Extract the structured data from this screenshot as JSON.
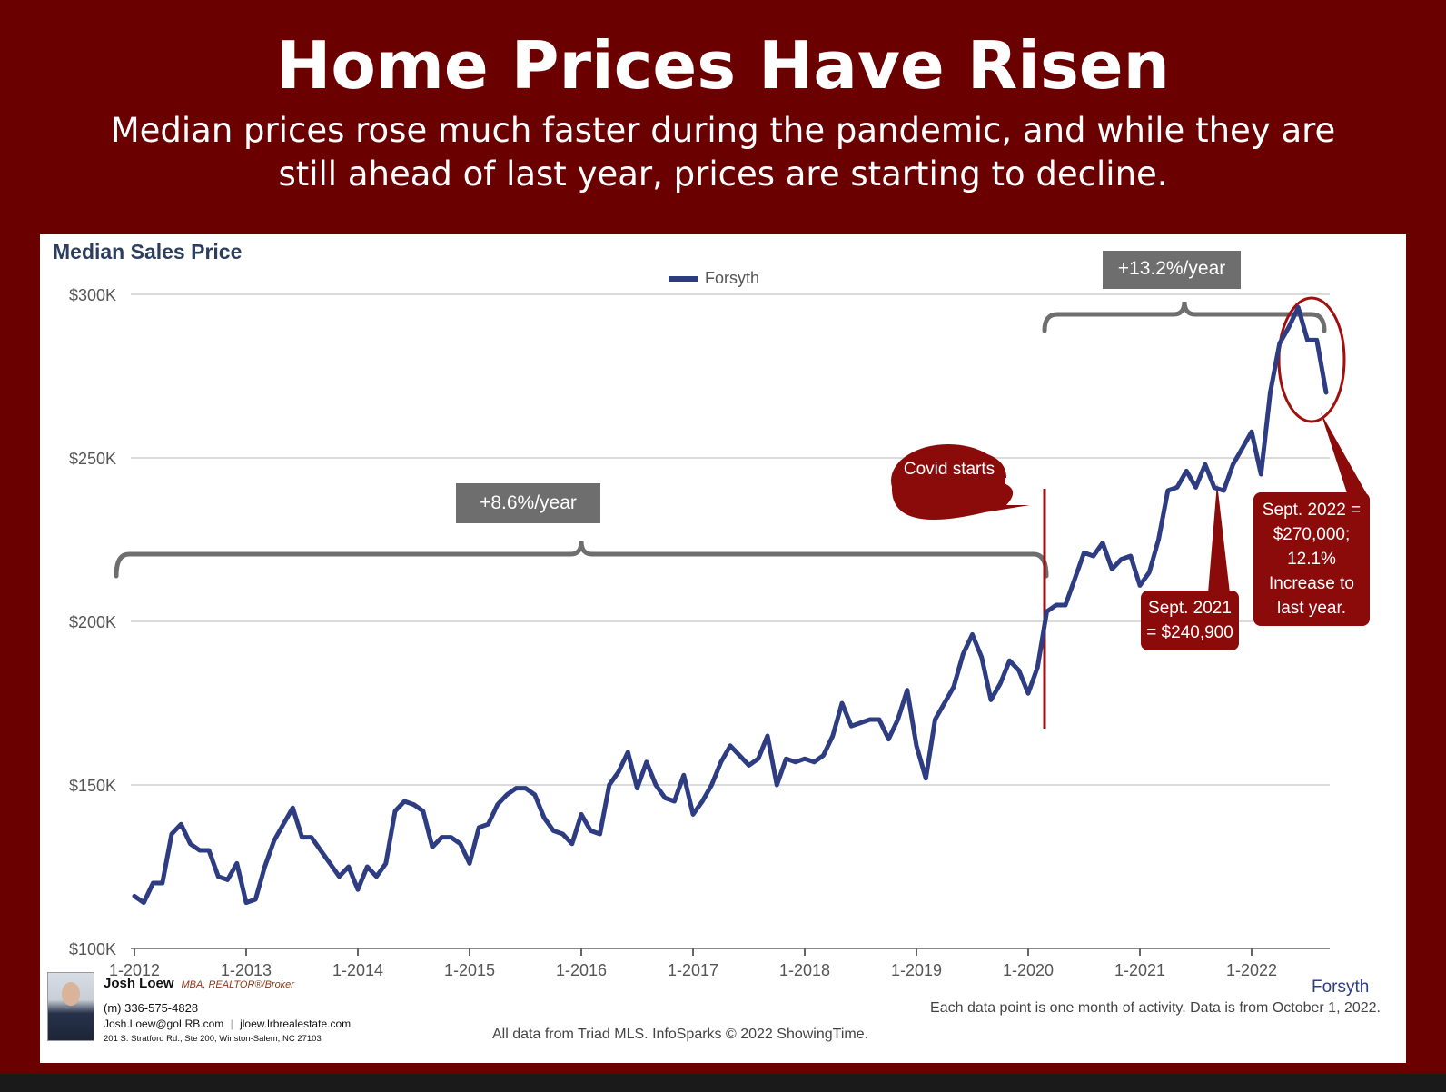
{
  "header": {
    "title": "Home Prices Have Risen",
    "subtitle": "Median prices rose much faster during the pandemic, and while they are still ahead of last year, prices are starting to decline."
  },
  "chart_data": {
    "type": "line",
    "title": "Median Sales Price",
    "legend": "Forsyth",
    "legend_position": "top-center",
    "grid": true,
    "ylim": [
      100000,
      300000
    ],
    "y_ticks": [
      "$100K",
      "$150K",
      "$200K",
      "$250K",
      "$300K"
    ],
    "y_tick_values": [
      100000,
      150000,
      200000,
      250000,
      300000
    ],
    "x_ticks": [
      "1-2012",
      "1-2013",
      "1-2014",
      "1-2015",
      "1-2016",
      "1-2017",
      "1-2018",
      "1-2019",
      "1-2020",
      "1-2021",
      "1-2022"
    ],
    "x_start": "2012-01",
    "series": [
      {
        "name": "Forsyth",
        "color": "#2e3c82",
        "values": [
          116000,
          114000,
          120000,
          120000,
          135000,
          138000,
          132000,
          130000,
          130000,
          122000,
          121000,
          126000,
          114000,
          115000,
          125000,
          133000,
          138000,
          143000,
          134000,
          134000,
          130000,
          126000,
          122000,
          125000,
          118000,
          125000,
          122000,
          126000,
          142000,
          145000,
          144000,
          142000,
          131000,
          134000,
          134000,
          132000,
          126000,
          137000,
          138000,
          144000,
          147000,
          149000,
          149000,
          147000,
          140000,
          136000,
          135000,
          132000,
          141000,
          136000,
          135000,
          150000,
          154000,
          160000,
          149000,
          157000,
          150000,
          146000,
          145000,
          153000,
          141000,
          145000,
          150000,
          157000,
          162000,
          159000,
          156000,
          158000,
          165000,
          150000,
          158000,
          157000,
          158000,
          157000,
          159000,
          165000,
          175000,
          168000,
          169000,
          170000,
          170000,
          164000,
          170000,
          179000,
          162000,
          152000,
          170000,
          175000,
          180000,
          190000,
          196000,
          189000,
          176000,
          181000,
          188000,
          185000,
          178000,
          186000,
          203000,
          205000,
          205000,
          213000,
          221000,
          220000,
          224000,
          216000,
          219000,
          220000,
          211000,
          215000,
          225000,
          240000,
          241000,
          246000,
          241000,
          248000,
          240900,
          240000,
          248000,
          253000,
          258000,
          245000,
          270000,
          285000,
          290000,
          296000,
          286000,
          286000,
          270000
        ]
      }
    ]
  },
  "annotations": {
    "growth_before": "+8.6%/year",
    "growth_after": "+13.2%/year",
    "covid": "Covid starts",
    "sept_2021": "Sept. 2021 = $240,900",
    "sept_2022": "Sept. 2022 = $270,000; 12.1% Increase to last year."
  },
  "footer": {
    "region": "Forsyth",
    "note": "Each data point is one month of activity. Data is from October 1, 2022.",
    "source": "All data from Triad MLS. InfoSparks © 2022 ShowingTime."
  },
  "agent": {
    "name": "Josh Loew",
    "credentials": "MBA, REALTOR®/Broker",
    "phone": "(m) 336-575-4828",
    "email": "Josh.Loew@goLRB.com",
    "website": "jloew.lrbrealestate.com",
    "address": "201 S. Stratford Rd., Ste 200, Winston-Salem, NC 27103"
  },
  "colors": {
    "background": "#6b0000",
    "line": "#2e3c82",
    "callout": "#8b0a0a",
    "label": "#6e6e6e"
  }
}
